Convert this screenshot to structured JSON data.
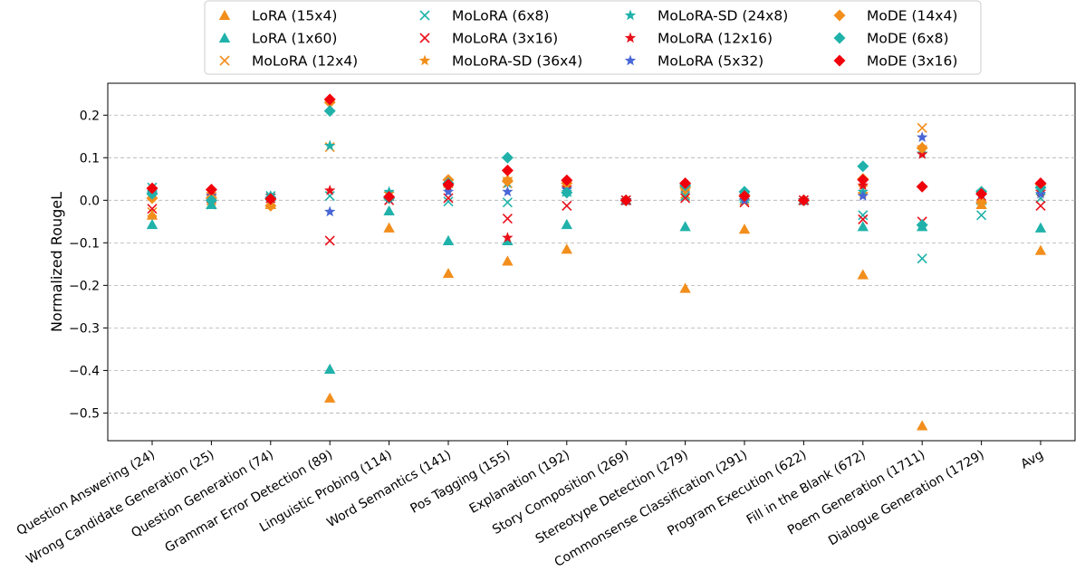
{
  "chart_data": {
    "type": "scatter",
    "ylabel": "Normalized RougeL",
    "xlabel": "",
    "ylim": [
      -0.565,
      0.275
    ],
    "yticks": [
      0.2,
      0.1,
      0.0,
      -0.1,
      -0.2,
      -0.3,
      -0.4,
      -0.5
    ],
    "ytick_labels": [
      "0.2",
      "0.1",
      "0.0",
      "−0.1",
      "−0.2",
      "−0.3",
      "−0.4",
      "−0.5"
    ],
    "grid": "horizontal dashed",
    "legend_placement": "top, outside plot, 4 columns",
    "categories": [
      "Question Answering (24)",
      "Wrong Candidate Generation (25)",
      "Question Generation (74)",
      "Grammar Error Detection (89)",
      "Linguistic Probing (114)",
      "Word Semantics (141)",
      "Pos Tagging (155)",
      "Explanation (192)",
      "Story Composition (269)",
      "Stereotype Detection (279)",
      "Commonsense Classification (291)",
      "Program Execution (622)",
      "Fill in the Blank (672)",
      "Poem Generation (1711)",
      "Dialogue Generation (1729)",
      "Avg"
    ],
    "series": [
      {
        "name": "LoRA (15x4)",
        "marker": "triangle",
        "color": "#F28E1C",
        "values": [
          -0.035,
          -0.01,
          -0.01,
          -0.465,
          -0.065,
          -0.172,
          -0.143,
          -0.115,
          0.0,
          -0.207,
          -0.068,
          0.0,
          -0.175,
          -0.53,
          -0.01,
          -0.118
        ]
      },
      {
        "name": "LoRA (1x60)",
        "marker": "triangle",
        "color": "#20B2AA",
        "values": [
          -0.057,
          -0.01,
          0.01,
          -0.397,
          -0.025,
          -0.095,
          -0.095,
          -0.057,
          0.0,
          -0.062,
          0.01,
          0.0,
          -0.062,
          -0.062,
          0.0,
          -0.065
        ]
      },
      {
        "name": "MoLoRA (12x4)",
        "marker": "x",
        "color": "#F28E1C",
        "values": [
          -0.028,
          0.0,
          -0.008,
          0.125,
          0.01,
          0.04,
          0.04,
          0.03,
          0.0,
          0.015,
          0.0,
          0.0,
          0.025,
          0.17,
          0.005,
          0.005
        ]
      },
      {
        "name": "MoLoRA (6x8)",
        "marker": "x",
        "color": "#20B2AA",
        "values": [
          0.03,
          -0.01,
          0.01,
          0.01,
          0.01,
          -0.003,
          -0.005,
          0.02,
          0.0,
          0.01,
          0.005,
          0.0,
          -0.035,
          -0.137,
          -0.035,
          0.005
        ]
      },
      {
        "name": "MoLoRA (3x16)",
        "marker": "x",
        "color": "#E8101A",
        "values": [
          -0.02,
          0.005,
          0.005,
          -0.095,
          0.0,
          0.005,
          -0.043,
          -0.013,
          0.0,
          0.005,
          -0.005,
          0.0,
          -0.045,
          -0.05,
          0.01,
          -0.013
        ]
      },
      {
        "name": "MoLoRA-SD (36x4)",
        "marker": "star",
        "color": "#F28E1C",
        "values": [
          0.01,
          0.015,
          0.0,
          0.128,
          0.015,
          0.045,
          0.05,
          0.03,
          0.0,
          0.03,
          0.015,
          0.0,
          0.015,
          0.125,
          0.015,
          0.02
        ]
      },
      {
        "name": "MoLoRA-SD (24x8)",
        "marker": "star",
        "color": "#20B2AA",
        "values": [
          0.02,
          0.01,
          0.01,
          0.128,
          0.02,
          0.035,
          0.04,
          0.02,
          0.0,
          0.035,
          0.015,
          0.0,
          0.02,
          0.11,
          0.02,
          0.02
        ]
      },
      {
        "name": "MoLoRA (12x16)",
        "marker": "star",
        "color": "#E8101A",
        "values": [
          0.025,
          0.02,
          0.005,
          0.023,
          0.005,
          0.03,
          -0.088,
          0.03,
          0.0,
          0.035,
          0.01,
          0.0,
          0.035,
          0.108,
          0.012,
          0.02
        ]
      },
      {
        "name": "MoLoRA (5x32)",
        "marker": "star",
        "color": "#4866D6",
        "values": [
          0.015,
          0.01,
          0.005,
          -0.027,
          0.005,
          0.02,
          0.02,
          0.025,
          0.0,
          0.03,
          0.0,
          0.0,
          0.01,
          0.148,
          0.015,
          0.015
        ]
      },
      {
        "name": "MoDE (14x4)",
        "marker": "diamond",
        "color": "#F28E1C",
        "values": [
          0.005,
          0.005,
          -0.013,
          0.23,
          0.005,
          0.048,
          0.045,
          0.04,
          0.0,
          0.03,
          0.01,
          0.0,
          0.05,
          0.123,
          -0.005,
          0.037
        ]
      },
      {
        "name": "MoDE (6x8)",
        "marker": "diamond",
        "color": "#20B2AA",
        "values": [
          0.015,
          0.0,
          0.005,
          0.21,
          0.005,
          0.04,
          0.1,
          0.018,
          0.0,
          0.035,
          0.02,
          0.0,
          0.08,
          -0.058,
          0.02,
          0.03
        ]
      },
      {
        "name": "MoDE (3x16)",
        "marker": "diamond",
        "color": "#F0000A",
        "values": [
          0.028,
          0.025,
          0.003,
          0.237,
          0.008,
          0.037,
          0.07,
          0.047,
          0.0,
          0.04,
          0.01,
          0.0,
          0.048,
          0.032,
          0.015,
          0.04
        ]
      }
    ]
  }
}
